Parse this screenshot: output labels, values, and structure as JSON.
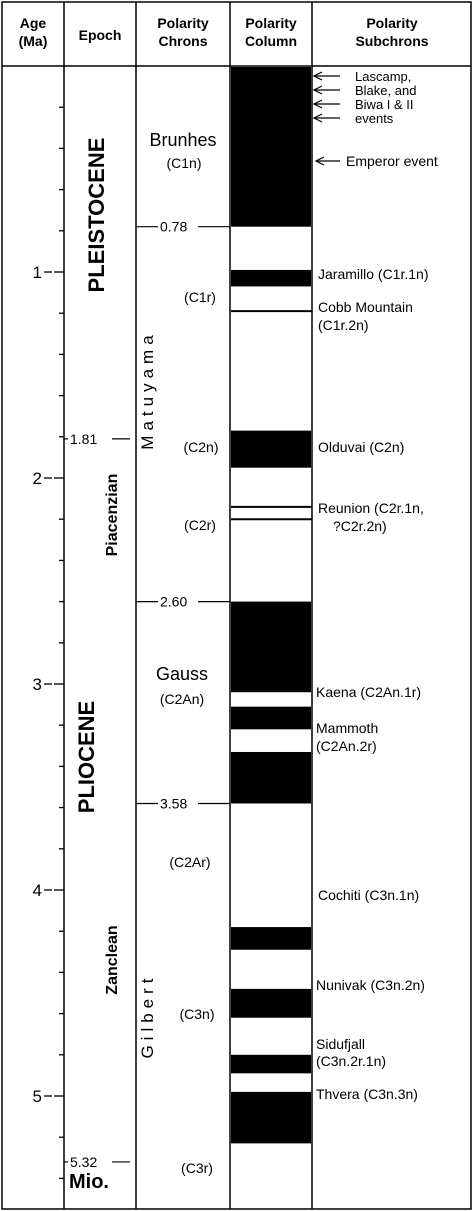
{
  "headers": {
    "age": [
      "Age",
      "(Ma)"
    ],
    "epoch": "Epoch",
    "chrons": [
      "Polarity",
      "Chrons"
    ],
    "column": [
      "Polarity",
      "Column"
    ],
    "subchrons": [
      "Polarity",
      "Subchrons"
    ]
  },
  "age_ticks": [
    "1",
    "2",
    "3",
    "4",
    "5"
  ],
  "boundaries": [
    {
      "label": "0.78",
      "age": 0.78
    },
    {
      "label": "1.81",
      "age": 1.81
    },
    {
      "label": "2.60",
      "age": 2.6
    },
    {
      "label": "3.58",
      "age": 3.58
    },
    {
      "label": "5.32",
      "age": 5.32
    }
  ],
  "epochs": {
    "pleistocene": "PLEISTOCENE",
    "pliocene": "PLIOCENE",
    "piacenzian": "Piacenzian",
    "zanclean": "Zanclean",
    "miocene": "Mio."
  },
  "chrons": {
    "brunhes": "Brunhes",
    "brunhes_code": "(C1n)",
    "matuyama": "Matuyama",
    "c1r": "(C1r)",
    "c2n": "(C2n)",
    "c2r": "(C2r)",
    "gauss": "Gauss",
    "gauss_code": "(C2An)",
    "c2ar": "(C2Ar)",
    "gilbert": "Gilbert",
    "c3n": "(C3n)",
    "c3r": "(C3r)"
  },
  "normal_intervals": [
    {
      "start": 0.0,
      "end": 0.78
    },
    {
      "start": 0.99,
      "end": 1.07
    },
    {
      "start": 1.77,
      "end": 1.95
    },
    {
      "start": 2.6,
      "end": 3.04
    },
    {
      "start": 3.11,
      "end": 3.22
    },
    {
      "start": 3.33,
      "end": 3.58
    },
    {
      "start": 4.18,
      "end": 4.29
    },
    {
      "start": 4.48,
      "end": 4.62
    },
    {
      "start": 4.8,
      "end": 4.89
    },
    {
      "start": 4.98,
      "end": 5.23
    }
  ],
  "thin_lines": [
    1.19,
    2.14,
    2.2
  ],
  "subchrons": {
    "events_lines": [
      "Lascamp,",
      "Blake, and",
      "Biwa I & II",
      "events"
    ],
    "emperor": "Emperor event",
    "jaramillo": "Jaramillo (C1r.1n)",
    "cobb": [
      "Cobb Mountain",
      "(C1r.2n)"
    ],
    "olduvai": "Olduvai (C2n)",
    "reunion": [
      "Reunion (C2r.1n,",
      "?C2r.2n)"
    ],
    "kaena": "Kaena (C2An.1r)",
    "mammoth": [
      "Mammoth",
      "(C2An.2r)"
    ],
    "cochiti": "Cochiti (C3n.1n)",
    "nunivak": "Nunivak (C3n.2n)",
    "sidufjall": [
      "Sidufjall",
      "(C3n.2r.1n)"
    ],
    "thvera": "Thvera (C3n.3n)"
  }
}
